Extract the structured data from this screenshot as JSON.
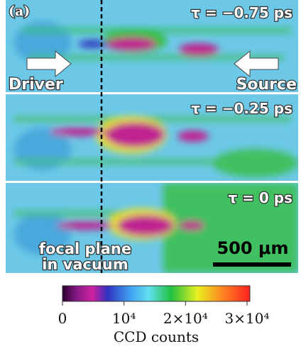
{
  "figure": {
    "panel_label": "(a)",
    "panels": [
      {
        "delay": "τ = −0.75 ps"
      },
      {
        "delay": "τ = −0.25 ps"
      },
      {
        "delay": "τ = 0 ps"
      }
    ],
    "driver_label": "Driver",
    "source_label": "Source",
    "focal_plane_label": [
      "focal plane",
      "in vacuum"
    ],
    "scale_bar": "500 μm"
  },
  "colorbar": {
    "lim": [
      0,
      30000
    ],
    "ticks": [
      0,
      {
        "value": 10000,
        "label": "10⁴"
      },
      {
        "value": 20000,
        "label": "2×10⁴"
      },
      {
        "value": 30000,
        "label": "3×10⁴"
      }
    ],
    "label": "CCD counts"
  }
}
